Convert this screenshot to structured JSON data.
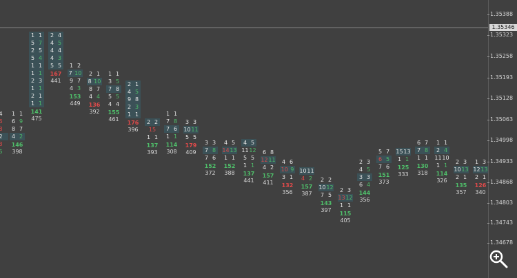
{
  "price_axis": {
    "ticks": [
      "1.35388",
      "1.35323",
      "1.35258",
      "1.35193",
      "1.35128",
      "1.35063",
      "1.34998",
      "1.34933",
      "1.34868",
      "1.34803",
      "1.34743",
      "1.34678"
    ],
    "current_price": "1.35346"
  },
  "columns": [
    {
      "cells": [
        [
          "4",
          "",
          ""
        ],
        [
          "6",
          "",
          ""
        ],
        [
          "8",
          "",
          ""
        ],
        [
          "2",
          "",
          ""
        ],
        [
          "3",
          "",
          ""
        ],
        [
          "5",
          "",
          ""
        ]
      ],
      "delta": "",
      "volume": ""
    },
    {
      "cells": [
        [
          "1",
          "1",
          ""
        ],
        [
          "6",
          "9",
          ""
        ],
        [
          "8",
          "7",
          ""
        ],
        [
          "4",
          "2",
          ""
        ]
      ],
      "delta": "146",
      "delta_sign": "pos",
      "volume": "398"
    },
    {
      "cells": [
        [
          "1",
          "1",
          ""
        ],
        [
          "5",
          "7",
          ""
        ],
        [
          "2",
          "5",
          ""
        ],
        [
          "5",
          "4",
          ""
        ],
        [
          "1",
          "1",
          ""
        ],
        [
          "1",
          "1",
          ""
        ],
        [
          "2",
          "3",
          ""
        ],
        [
          "1",
          "1",
          ""
        ],
        [
          "2",
          "1",
          ""
        ],
        [
          "1",
          "1",
          ""
        ]
      ],
      "delta": "141",
      "delta_sign": "pos",
      "volume": "475"
    },
    {
      "cells": [
        [
          "2",
          "4",
          ""
        ],
        [
          "4",
          "5",
          ""
        ],
        [
          "4",
          "4",
          ""
        ],
        [
          "4",
          "3",
          ""
        ],
        [
          "5",
          "5",
          ""
        ]
      ],
      "delta": "167",
      "delta_sign": "neg",
      "volume": "441"
    },
    {
      "cells": [
        [
          "1",
          "2",
          ""
        ],
        [
          "7",
          "10",
          ""
        ],
        [
          "9",
          "7",
          ""
        ],
        [
          "4",
          "3",
          ""
        ]
      ],
      "delta": "153",
      "delta_sign": "pos",
      "volume": "449"
    },
    {
      "cells": [
        [
          "2",
          "1",
          ""
        ],
        [
          "8",
          "10",
          ""
        ],
        [
          "8",
          "7",
          ""
        ],
        [
          "4",
          "4",
          ""
        ]
      ],
      "delta": "136",
      "delta_sign": "neg",
      "volume": "392"
    },
    {
      "cells": [
        [
          "1",
          "1",
          ""
        ],
        [
          "3",
          "5",
          ""
        ],
        [
          "7",
          "8",
          ""
        ],
        [
          "5",
          "5",
          ""
        ],
        [
          "4",
          "4",
          ""
        ]
      ],
      "delta": "155",
      "delta_sign": "pos",
      "volume": "461"
    },
    {
      "cells": [
        [
          "2",
          "1",
          ""
        ],
        [
          "4",
          "5",
          ""
        ],
        [
          "9",
          "8",
          ""
        ],
        [
          "2",
          "3",
          ""
        ],
        [
          "1",
          "1",
          ""
        ]
      ],
      "delta": "176",
      "delta_sign": "neg",
      "volume": "396"
    },
    {
      "cells": [
        [
          "2",
          "2",
          ""
        ],
        [
          "15",
          "",
          ""
        ],
        [
          "1",
          "1",
          ""
        ]
      ],
      "delta": "137",
      "delta_sign": "pos",
      "volume": "393"
    },
    {
      "cells": [
        [
          "1",
          "1",
          ""
        ],
        [
          "7",
          "8",
          ""
        ],
        [
          "7",
          "6",
          ""
        ],
        [
          "1",
          "1",
          ""
        ]
      ],
      "delta": "114",
      "delta_sign": "pos",
      "volume": "308"
    },
    {
      "cells": [
        [
          "3",
          "3",
          ""
        ],
        [
          "10",
          "11",
          ""
        ],
        [
          "5",
          "5",
          ""
        ]
      ],
      "delta": "179",
      "delta_sign": "neg",
      "volume": "409"
    },
    {
      "cells": [
        [
          "3",
          "3",
          ""
        ],
        [
          "7",
          "8",
          ""
        ],
        [
          "7",
          "6",
          ""
        ]
      ],
      "delta": "152",
      "delta_sign": "pos",
      "volume": "372"
    },
    {
      "cells": [
        [
          "4",
          "5",
          ""
        ],
        [
          "14",
          "13",
          ""
        ],
        [
          "1",
          "1",
          ""
        ]
      ],
      "delta": "152",
      "delta_sign": "pos",
      "volume": "388"
    },
    {
      "cells": [
        [
          "4",
          "5",
          ""
        ],
        [
          "11",
          "12",
          ""
        ],
        [
          "5",
          "5",
          ""
        ],
        [
          "1",
          "1",
          ""
        ]
      ],
      "delta": "137",
      "delta_sign": "pos",
      "volume": "441"
    },
    {
      "cells": [
        [
          "6",
          "8",
          ""
        ],
        [
          "12",
          "11",
          ""
        ],
        [
          "4",
          "2",
          ""
        ]
      ],
      "delta": "157",
      "delta_sign": "pos",
      "volume": "411"
    },
    {
      "cells": [
        [
          "4",
          "6",
          ""
        ],
        [
          "10",
          "9",
          ""
        ],
        [
          "3",
          "1",
          ""
        ]
      ],
      "delta": "132",
      "delta_sign": "neg",
      "volume": "356"
    },
    {
      "cells": [
        [
          "10",
          "11",
          ""
        ],
        [
          "4",
          "2",
          ""
        ]
      ],
      "delta": "157",
      "delta_sign": "pos",
      "volume": "387"
    },
    {
      "cells": [
        [
          "2",
          "2",
          ""
        ],
        [
          "10",
          "12",
          ""
        ],
        [
          "7",
          "5",
          ""
        ]
      ],
      "delta": "143",
      "delta_sign": "pos",
      "volume": "397"
    },
    {
      "cells": [
        [
          "2",
          "3",
          ""
        ],
        [
          "13",
          "12",
          ""
        ],
        [
          "1",
          "1",
          ""
        ]
      ],
      "delta": "115",
      "delta_sign": "pos",
      "volume": "405"
    },
    {
      "cells": [
        [
          "2",
          "3",
          ""
        ],
        [
          "4",
          "5",
          ""
        ],
        [
          "3",
          "3",
          ""
        ],
        [
          "6",
          "4",
          ""
        ]
      ],
      "delta": "144",
      "delta_sign": "pos",
      "volume": "356"
    },
    {
      "cells": [
        [
          "5",
          "7",
          ""
        ],
        [
          "6",
          "5",
          ""
        ],
        [
          "7",
          "6",
          ""
        ]
      ],
      "delta": "151",
      "delta_sign": "pos",
      "volume": "373"
    },
    {
      "cells": [
        [
          "15",
          "13",
          ""
        ],
        [
          "1",
          "1",
          ""
        ]
      ],
      "delta": "125",
      "delta_sign": "pos",
      "volume": "333"
    },
    {
      "cells": [
        [
          "6",
          "7",
          ""
        ],
        [
          "7",
          "8",
          ""
        ],
        [
          "1",
          "1",
          ""
        ]
      ],
      "delta": "130",
      "delta_sign": "pos",
      "volume": "318"
    },
    {
      "cells": [
        [
          "1",
          "1",
          ""
        ],
        [
          "2",
          "4",
          ""
        ],
        [
          "11",
          "10",
          ""
        ],
        [
          "1",
          "1",
          ""
        ]
      ],
      "delta": "114",
      "delta_sign": "pos",
      "volume": "326"
    },
    {
      "cells": [
        [
          "2",
          "3",
          ""
        ],
        [
          "10",
          "13",
          ""
        ],
        [
          "2",
          "1",
          ""
        ]
      ],
      "delta": "135",
      "delta_sign": "pos",
      "volume": "357"
    },
    {
      "cells": [
        [
          "1",
          "3",
          ""
        ],
        [
          "12",
          "13",
          ""
        ],
        [
          "2",
          "1",
          ""
        ]
      ],
      "delta": "126",
      "delta_sign": "neg",
      "volume": "340"
    }
  ],
  "colors": {
    "background": "#404040",
    "buy": "#4fbf6a",
    "sell": "#e04a4a",
    "poc": "#3b5157"
  },
  "zoom_icon": "zoom-in-icon"
}
